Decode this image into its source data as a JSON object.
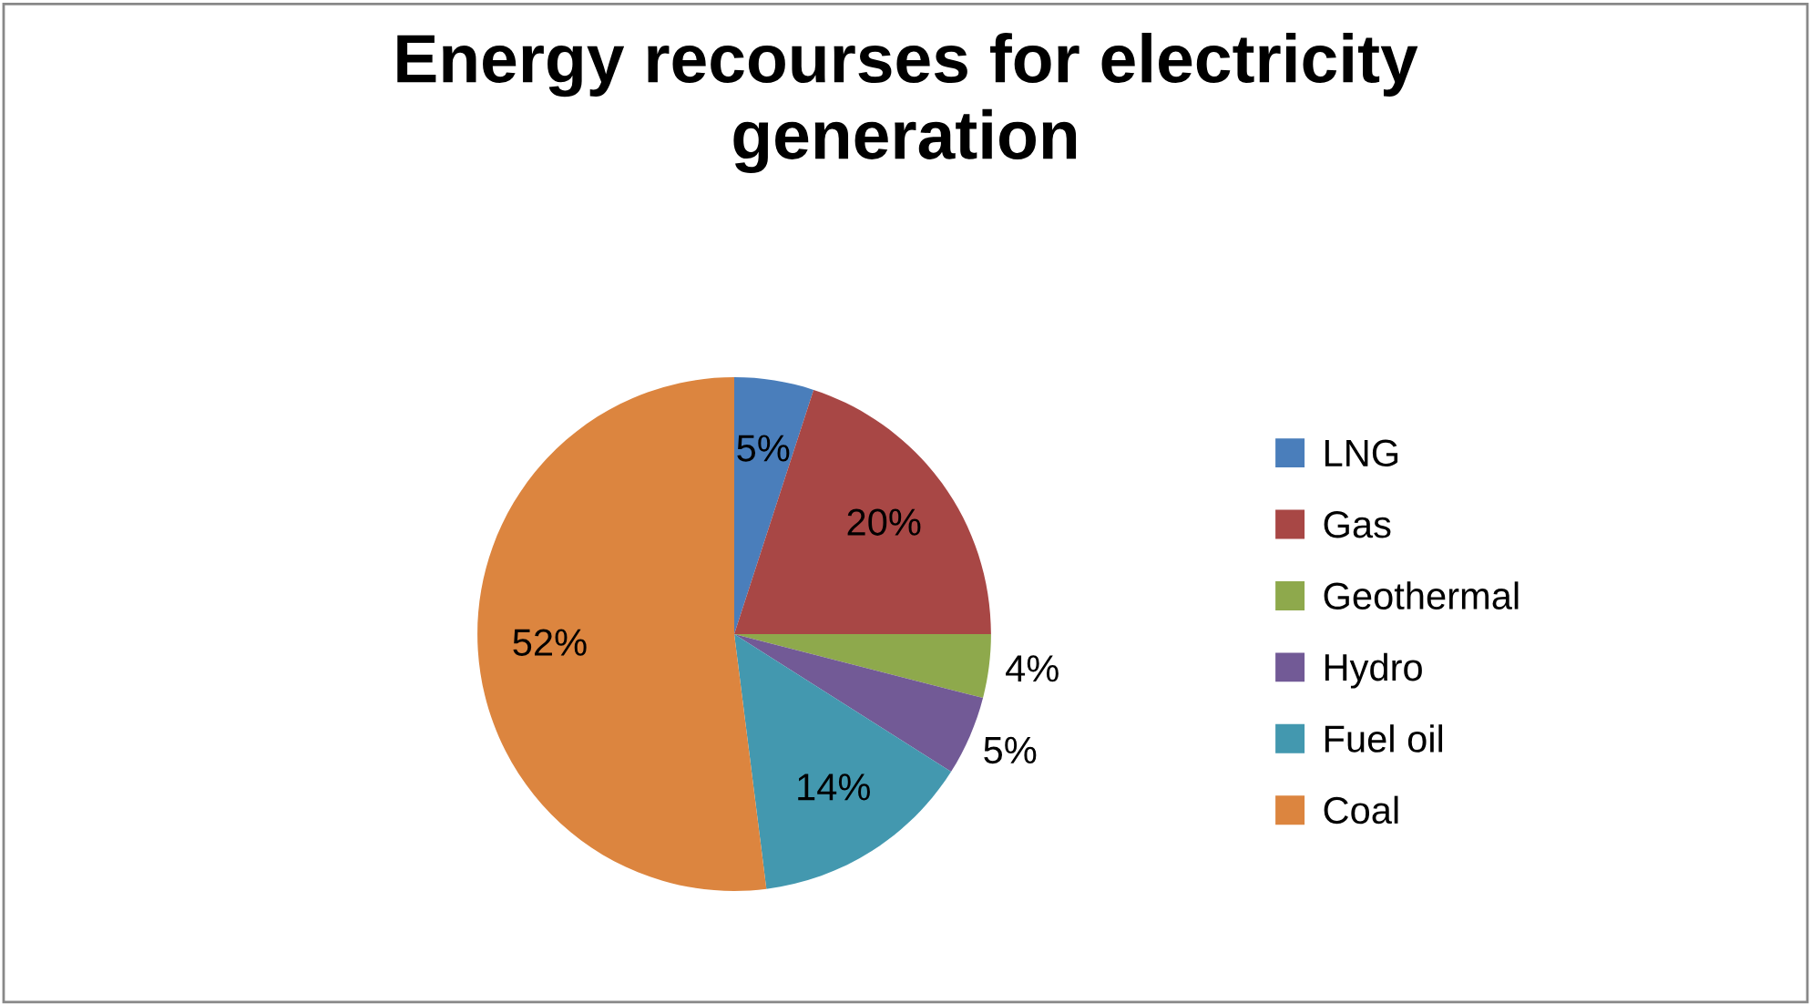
{
  "chart_data": {
    "type": "pie",
    "title": "Energy recourses for electricity generation",
    "categories": [
      "LNG",
      "Gas",
      "Geothermal",
      "Hydro",
      "Fuel oil",
      "Coal"
    ],
    "values": [
      5,
      20,
      4,
      5,
      14,
      52
    ],
    "colors": [
      "#4a7ebb",
      "#a84745",
      "#8ea94c",
      "#725a96",
      "#4398af",
      "#dc853f"
    ],
    "value_labels": [
      "5%",
      "20%",
      "4%",
      "5%",
      "14%",
      "52%"
    ],
    "legend": "right"
  }
}
